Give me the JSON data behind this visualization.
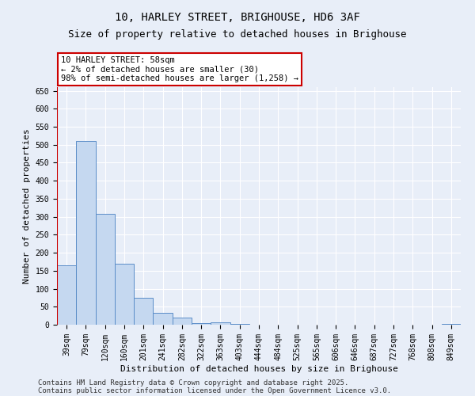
{
  "title1": "10, HARLEY STREET, BRIGHOUSE, HD6 3AF",
  "title2": "Size of property relative to detached houses in Brighouse",
  "xlabel": "Distribution of detached houses by size in Brighouse",
  "ylabel": "Number of detached properties",
  "categories": [
    "39sqm",
    "79sqm",
    "120sqm",
    "160sqm",
    "201sqm",
    "241sqm",
    "282sqm",
    "322sqm",
    "363sqm",
    "403sqm",
    "444sqm",
    "484sqm",
    "525sqm",
    "565sqm",
    "606sqm",
    "646sqm",
    "687sqm",
    "727sqm",
    "768sqm",
    "808sqm",
    "849sqm"
  ],
  "values": [
    165,
    510,
    308,
    170,
    75,
    33,
    20,
    5,
    6,
    3,
    0,
    0,
    0,
    0,
    0,
    0,
    0,
    0,
    0,
    0,
    3
  ],
  "bar_color": "#c5d8f0",
  "bar_edge_color": "#5b8dc8",
  "highlight_color": "#cc0000",
  "annotation_text": "10 HARLEY STREET: 58sqm\n← 2% of detached houses are smaller (30)\n98% of semi-detached houses are larger (1,258) →",
  "annotation_box_color": "#ffffff",
  "annotation_border_color": "#cc0000",
  "ylim": [
    0,
    660
  ],
  "yticks": [
    0,
    50,
    100,
    150,
    200,
    250,
    300,
    350,
    400,
    450,
    500,
    550,
    600,
    650
  ],
  "footer1": "Contains HM Land Registry data © Crown copyright and database right 2025.",
  "footer2": "Contains public sector information licensed under the Open Government Licence v3.0.",
  "bg_color": "#e8eef8",
  "grid_color": "#ffffff",
  "title_fontsize": 10,
  "subtitle_fontsize": 9,
  "axis_label_fontsize": 8,
  "tick_fontsize": 7,
  "footer_fontsize": 6.5,
  "annotation_fontsize": 7.5
}
